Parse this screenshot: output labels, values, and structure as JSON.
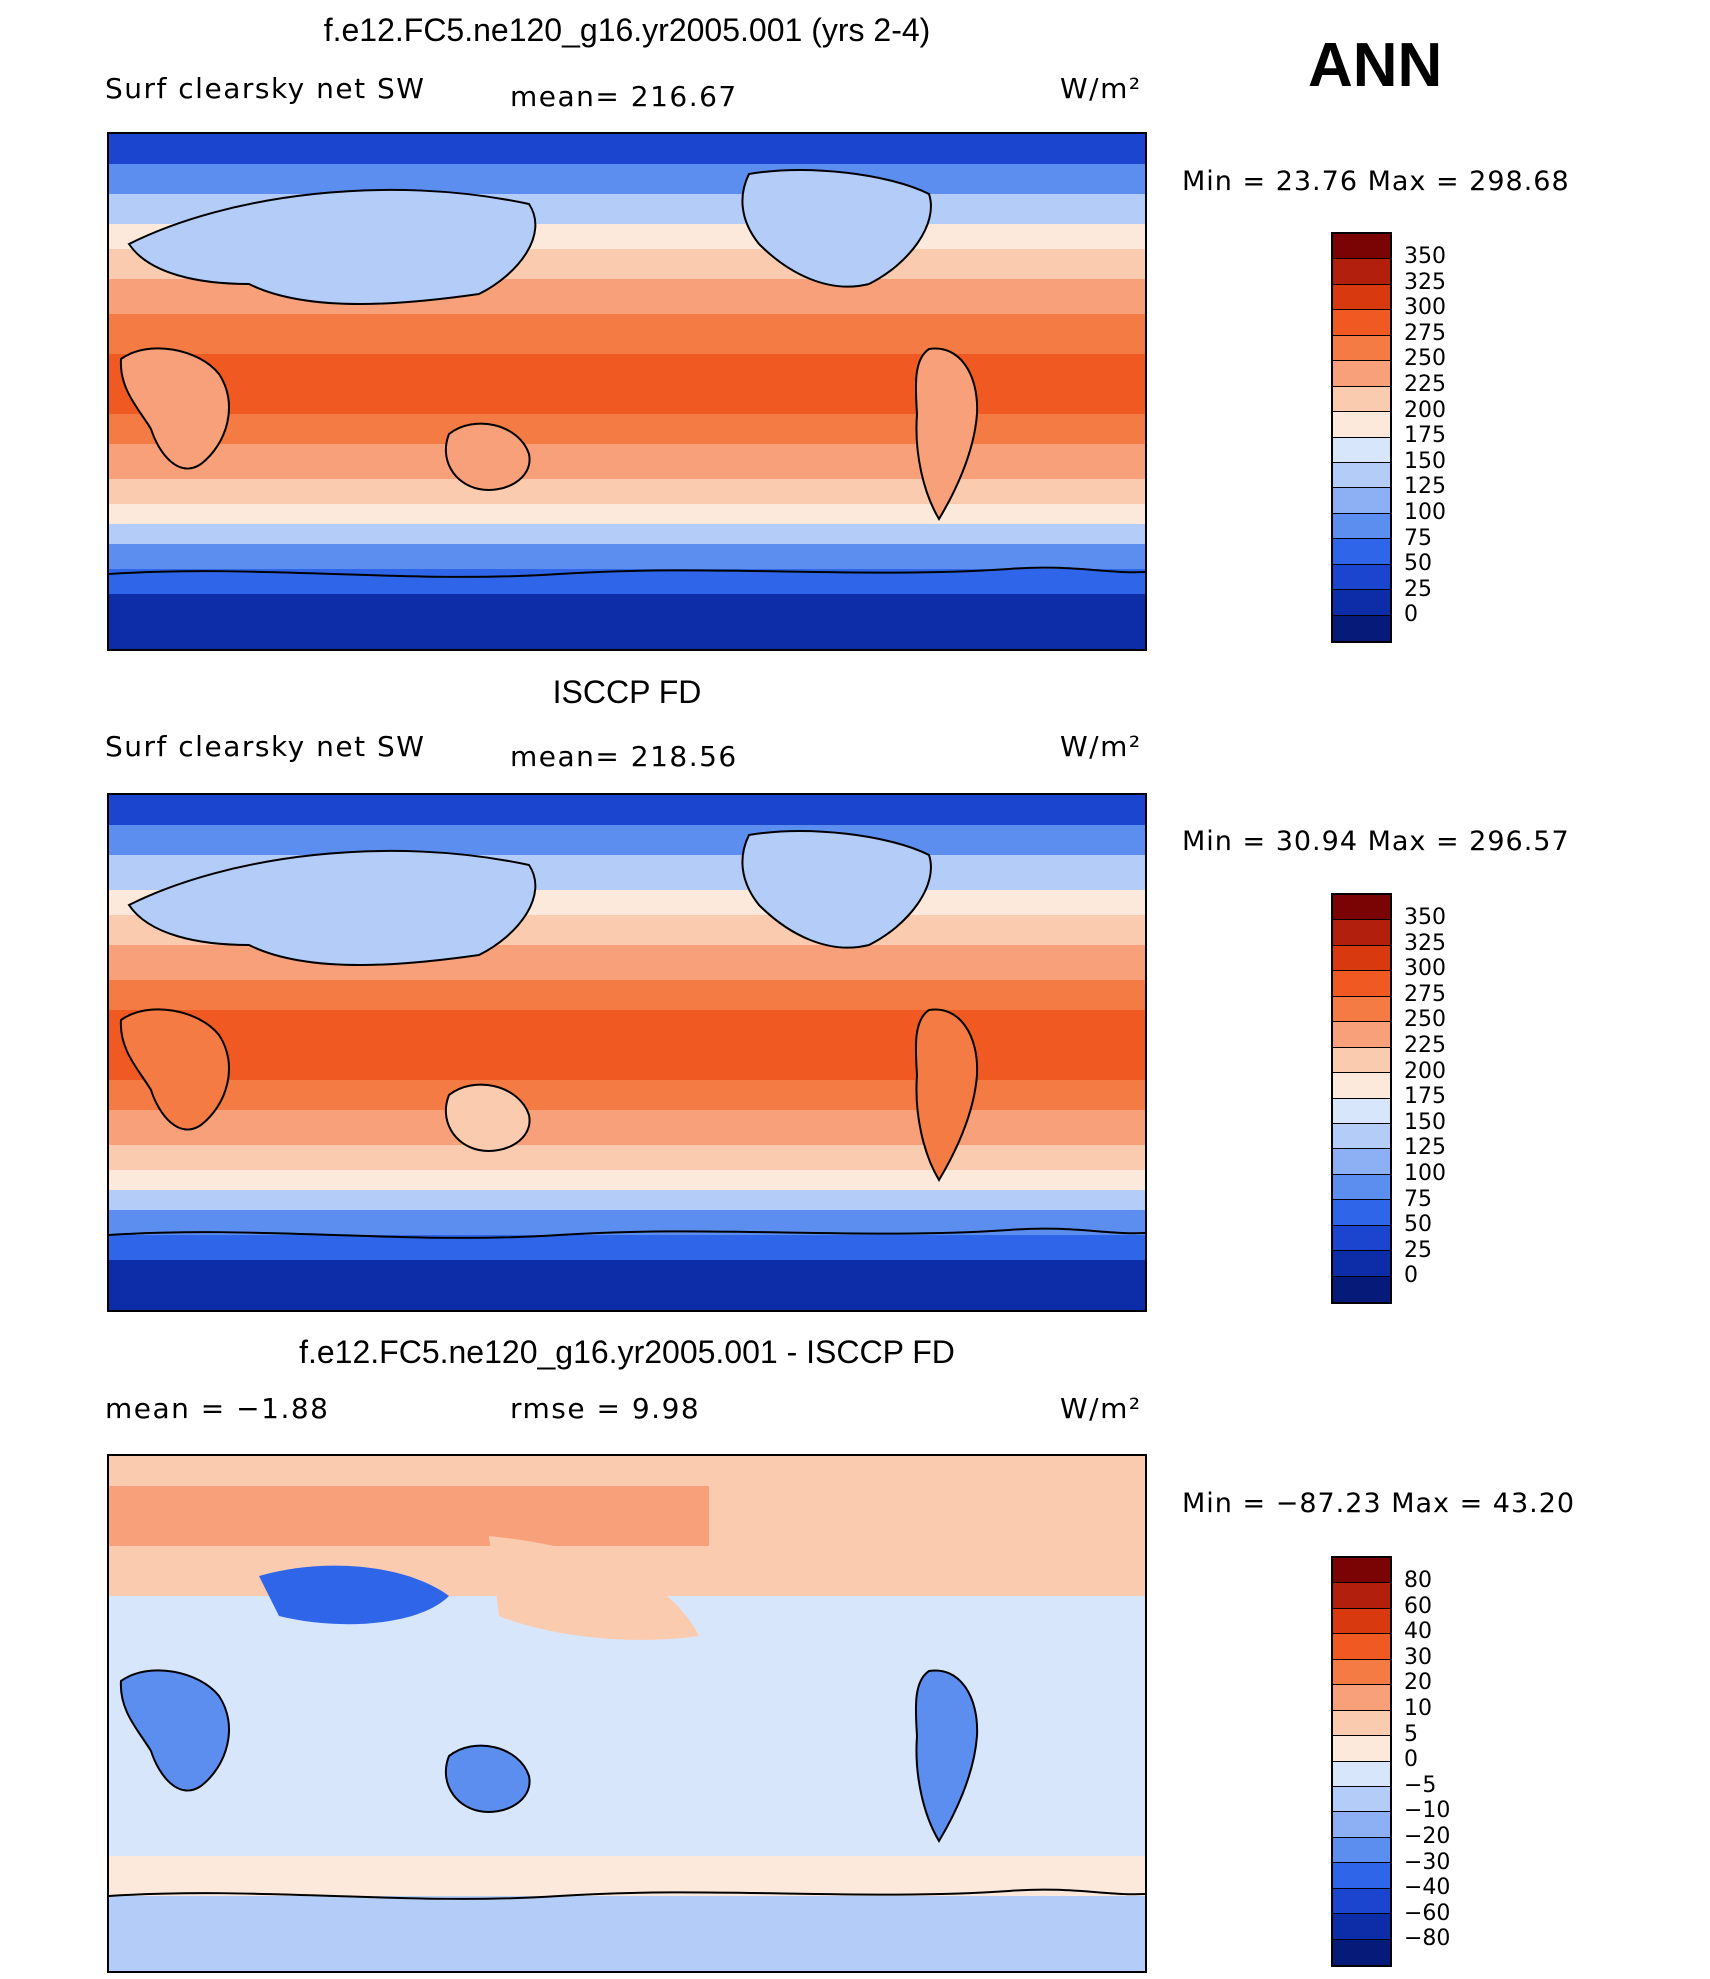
{
  "season": "ANN",
  "units": "W/m²",
  "panels": [
    {
      "title": "f.e12.FC5.ne120_g16.yr2005.001 (yrs 2-4)",
      "left_label": "Surf  clearsky  net  SW",
      "center_label": "mean=  216.67",
      "units": "W/m²",
      "min_max": "Min  =     23.76  Max  =  298.68",
      "colorbar": {
        "levels": [
          "350",
          "325",
          "300",
          "275",
          "250",
          "225",
          "200",
          "175",
          "150",
          "125",
          "100",
          "75",
          "50",
          "25",
          "0"
        ],
        "colors": [
          "#7a0403",
          "#b21f0c",
          "#d8390e",
          "#f05a22",
          "#f57b45",
          "#f8a07a",
          "#fbcbb0",
          "#fde9dc",
          "#d8e6fb",
          "#b3cdf8",
          "#8db0f4",
          "#5c8ef0",
          "#2f66e9",
          "#1b44cf",
          "#0d2ca7",
          "#061a7a"
        ]
      }
    },
    {
      "title": "ISCCP FD",
      "left_label": "Surf  clearsky  net  SW",
      "center_label": "mean=  218.56",
      "units": "W/m²",
      "min_max": "Min  =     30.94  Max  =  296.57",
      "colorbar": {
        "levels": [
          "350",
          "325",
          "300",
          "275",
          "250",
          "225",
          "200",
          "175",
          "150",
          "125",
          "100",
          "75",
          "50",
          "25",
          "0"
        ],
        "colors": [
          "#7a0403",
          "#b21f0c",
          "#d8390e",
          "#f05a22",
          "#f57b45",
          "#f8a07a",
          "#fbcbb0",
          "#fde9dc",
          "#d8e6fb",
          "#b3cdf8",
          "#8db0f4",
          "#5c8ef0",
          "#2f66e9",
          "#1b44cf",
          "#0d2ca7",
          "#061a7a"
        ]
      }
    },
    {
      "title": "f.e12.FC5.ne120_g16.yr2005.001 - ISCCP FD",
      "left_label": "mean  =    −1.88",
      "center_label": "rmse  =      9.98",
      "units": "W/m²",
      "min_max": "Min  = −87.23  Max  =     43.20",
      "colorbar": {
        "levels": [
          "80",
          "60",
          "40",
          "30",
          "20",
          "10",
          "5",
          "0",
          "−5",
          "−10",
          "−20",
          "−30",
          "−40",
          "−60",
          "−80"
        ],
        "colors": [
          "#7a0403",
          "#b21f0c",
          "#d8390e",
          "#f05a22",
          "#f57b45",
          "#f8a07a",
          "#fbcbb0",
          "#fde9dc",
          "#d8e6fb",
          "#b3cdf8",
          "#8db0f4",
          "#5c8ef0",
          "#2f66e9",
          "#1b44cf",
          "#0d2ca7",
          "#061a7a"
        ]
      }
    }
  ]
}
